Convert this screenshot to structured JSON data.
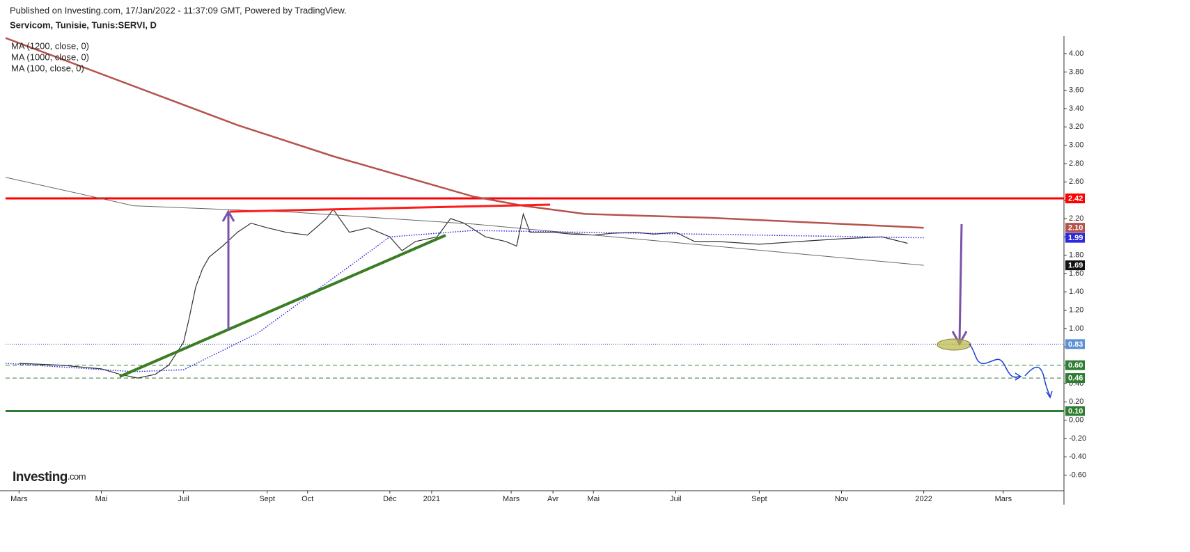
{
  "header": "Published on Investing.com, 17/Jan/2022 - 11:37:09 GMT, Powered by TradingView.",
  "logo": {
    "word": "Investing",
    "suffix": ".com"
  },
  "chart_data": {
    "type": "line",
    "title": "Servicom, Tunisie, Tunis:SERVI, D",
    "xlim": [
      "2020-02-20",
      "2022-04-15"
    ],
    "xticks": [
      {
        "value": "2020-03-01",
        "label": "Mars"
      },
      {
        "value": "2020-05-01",
        "label": "Mai"
      },
      {
        "value": "2020-07-01",
        "label": "Juil"
      },
      {
        "value": "2020-09-01",
        "label": "Sept"
      },
      {
        "value": "2020-10-01",
        "label": "Oct"
      },
      {
        "value": "2020-12-01",
        "label": "Déc"
      },
      {
        "value": "2021-01-01",
        "label": "2021"
      },
      {
        "value": "2021-03-01",
        "label": "Mars"
      },
      {
        "value": "2021-04-01",
        "label": "Avr"
      },
      {
        "value": "2021-05-01",
        "label": "Mai"
      },
      {
        "value": "2021-07-01",
        "label": "Juil"
      },
      {
        "value": "2021-09-01",
        "label": "Sept"
      },
      {
        "value": "2021-11-01",
        "label": "Nov"
      },
      {
        "value": "2022-01-01",
        "label": "2022"
      },
      {
        "value": "2022-03-01",
        "label": "Mars"
      }
    ],
    "ylim": [
      -0.77,
      4.19
    ],
    "yticks": [
      {
        "value": -0.6,
        "label": "-0.60"
      },
      {
        "value": -0.4,
        "label": "-0.40"
      },
      {
        "value": -0.2,
        "label": "-0.20"
      },
      {
        "value": 0,
        "label": "0.00"
      },
      {
        "value": 0.2,
        "label": "0.20"
      },
      {
        "value": 0.4,
        "label": "0.40"
      },
      {
        "value": 0.6,
        "label": "0.60"
      },
      {
        "value": 0.8,
        "label": "0.80"
      },
      {
        "value": 1,
        "label": "1.00"
      },
      {
        "value": 1.2,
        "label": "1.20"
      },
      {
        "value": 1.4,
        "label": "1.40"
      },
      {
        "value": 1.6,
        "label": "1.60"
      },
      {
        "value": 1.8,
        "label": "1.80"
      },
      {
        "value": 2,
        "label": "2.00"
      },
      {
        "value": 2.2,
        "label": "2.20"
      },
      {
        "value": 2.4,
        "label": "2.40"
      },
      {
        "value": 2.6,
        "label": "2.60"
      },
      {
        "value": 2.8,
        "label": "2.80"
      },
      {
        "value": 3,
        "label": "3.00"
      },
      {
        "value": 3.2,
        "label": "3.20"
      },
      {
        "value": 3.4,
        "label": "3.40"
      },
      {
        "value": 3.6,
        "label": "3.60"
      },
      {
        "value": 3.8,
        "label": "3.80"
      },
      {
        "value": 4,
        "label": "4.00"
      }
    ],
    "grid": false,
    "series": [
      {
        "color": "#333333",
        "width": 1.2,
        "x": [
          "2020-03-01",
          "2020-04-01",
          "2020-05-01",
          "2020-05-15",
          "2020-05-28",
          "2020-06-10",
          "2020-06-20",
          "2020-07-01",
          "2020-07-05",
          "2020-07-10",
          "2020-07-15",
          "2020-07-20",
          "2020-07-30",
          "2020-08-10",
          "2020-08-20",
          "2020-09-01",
          "2020-09-15",
          "2020-10-01",
          "2020-10-15",
          "2020-10-20",
          "2020-11-01",
          "2020-11-15",
          "2020-12-01",
          "2020-12-10",
          "2020-12-20",
          "2021-01-05",
          "2021-01-15",
          "2021-01-25",
          "2021-02-10",
          "2021-02-25",
          "2021-03-05",
          "2021-03-10",
          "2021-03-15",
          "2021-04-01",
          "2021-04-15",
          "2021-05-01",
          "2021-05-15",
          "2021-06-01",
          "2021-06-15",
          "2021-07-01",
          "2021-07-15",
          "2021-08-01",
          "2021-09-01",
          "2021-10-01",
          "2021-11-01",
          "2021-12-01",
          "2021-12-20"
        ],
        "values": [
          0.62,
          0.6,
          0.56,
          0.5,
          0.46,
          0.5,
          0.6,
          0.85,
          1.1,
          1.45,
          1.65,
          1.78,
          1.9,
          2.05,
          2.15,
          2.1,
          2.05,
          2.02,
          2.2,
          2.3,
          2.05,
          2.1,
          2.0,
          1.85,
          1.95,
          2.0,
          2.2,
          2.15,
          2.0,
          1.95,
          1.9,
          2.25,
          2.05,
          2.05,
          2.03,
          2.02,
          2.04,
          2.05,
          2.03,
          2.05,
          1.95,
          1.95,
          1.92,
          1.95,
          1.98,
          2.0,
          1.93
        ]
      },
      {
        "name": "MA (1200, close, 0)",
        "color": "#b5534d",
        "width": 2.5,
        "last_value_label": "2.10",
        "x": [
          "2020-02-20",
          "2020-08-10",
          "2020-10-20",
          "2021-02-01",
          "2021-03-10",
          "2021-04-25",
          "2021-07-25",
          "2022-01-01"
        ],
        "values": [
          4.17,
          3.22,
          2.88,
          2.44,
          2.34,
          2.25,
          2.21,
          2.1
        ]
      },
      {
        "name": "MA (1000, close, 0)",
        "color": "#666666",
        "width": 1,
        "last_value_label": "1.69",
        "x": [
          "2020-02-20",
          "2020-05-25",
          "2020-09-20",
          "2021-02-01",
          "2021-06-15",
          "2022-01-01"
        ],
        "values": [
          2.65,
          2.34,
          2.27,
          2.14,
          1.96,
          1.69
        ]
      },
      {
        "name": "MA (100, close, 0)",
        "color": "#2b2bdd",
        "width": 1.5,
        "dotted": true,
        "last_value_label": "1.99",
        "x": [
          "2020-02-20",
          "2020-05-25",
          "2020-07-01",
          "2020-08-25",
          "2020-10-20",
          "2020-12-01",
          "2021-02-01",
          "2021-04-25",
          "2022-01-01"
        ],
        "values": [
          0.62,
          0.53,
          0.55,
          0.95,
          1.55,
          2.0,
          2.07,
          2.05,
          1.99
        ]
      }
    ],
    "levels": [
      {
        "value": 2.42,
        "color": "#ff0000",
        "width": 3,
        "dash": false
      },
      {
        "value": 0.83,
        "color": "#1e3a8a",
        "width": 1,
        "dash": "1,2",
        "tag_color": "#5b8fd6"
      },
      {
        "value": 0.6,
        "label": "0.60",
        "color": "#2e7d32",
        "width": 1,
        "dash": "6,4"
      },
      {
        "value": 0.46,
        "color": "#2e7d32",
        "width": 1,
        "dash": "6,4"
      },
      {
        "value": 0.1,
        "label": "0.10",
        "color": "#2e7d32",
        "width": 3,
        "dash": false
      }
    ]
  }
}
